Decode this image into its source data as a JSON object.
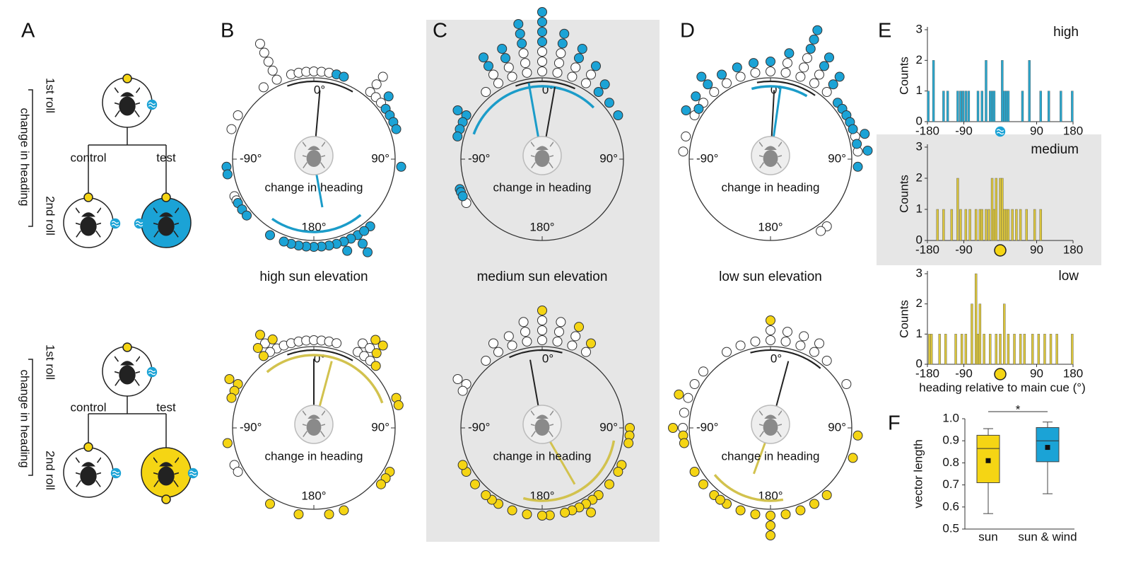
{
  "labels": [
    "A",
    "B",
    "C",
    "D",
    "E",
    "F"
  ],
  "panel_a": {
    "first_roll": "1st roll",
    "second_roll": "2nd roll",
    "change": "change in heading",
    "control": "control",
    "test": "test"
  },
  "circles": {
    "columns": [
      "high sun elevation",
      "medium sun elevation",
      "low sun elevation"
    ],
    "axis_labels": {
      "top": "0°",
      "right": "90°",
      "bottom": "180°",
      "left": "-90°"
    },
    "center_label": "change in heading",
    "plots": [
      {
        "color": "#1ba3d6",
        "line_color": "#1b9cc9",
        "white": [
          -35,
          -25,
          -25,
          -25,
          -25,
          -25,
          -15,
          -10,
          -5,
          0,
          5,
          10,
          40,
          40,
          40,
          45,
          50,
          -60,
          -70,
          -115,
          -118
        ],
        "colored": [
          15,
          20,
          50,
          55,
          60,
          65,
          70,
          95,
          -95,
          -100,
          -120,
          -125,
          -130,
          150,
          150,
          150,
          155,
          160,
          160,
          165,
          170,
          175,
          180,
          -175,
          -170,
          -165,
          -160,
          -150,
          140,
          145
        ],
        "vectors": [
          {
            "angle": 5,
            "length": 0.85
          },
          {
            "angle": 170,
            "length": 0.6
          }
        ],
        "arcs": [
          {
            "start": -20,
            "end": 30
          },
          {
            "start": 140,
            "end": 215
          }
        ]
      },
      {
        "color": "#1ba3d6",
        "line_color": "#1b9cc9",
        "white": [
          -40,
          -30,
          -30,
          -20,
          -20,
          -10,
          -10,
          -10,
          0,
          0,
          0,
          10,
          10,
          10,
          20,
          20,
          30,
          30,
          -120
        ],
        "colored": [
          -30,
          -30,
          -20,
          -20,
          -10,
          -10,
          -10,
          0,
          0,
          0,
          0,
          10,
          10,
          20,
          20,
          30,
          40,
          40,
          50,
          60,
          -60,
          -60,
          -65,
          -70,
          -75,
          -110,
          -112,
          -115
        ],
        "vectors": [
          {
            "angle": 10,
            "length": 0.9
          },
          {
            "angle": -10,
            "length": 0.95
          }
        ],
        "arcs": [
          {
            "start": -20,
            "end": 25
          },
          {
            "start": -70,
            "end": 45
          }
        ]
      },
      {
        "color": "#1ba3d6",
        "line_color": "#1b9cc9",
        "white": [
          -60,
          -50,
          -40,
          -30,
          -20,
          -10,
          0,
          10,
          10,
          20,
          20,
          20,
          30,
          30,
          40,
          75,
          85,
          -75,
          -85,
          140,
          145
        ],
        "colored": [
          -60,
          -55,
          -50,
          -40,
          -40,
          -30,
          -20,
          -10,
          0,
          10,
          20,
          20,
          20,
          30,
          30,
          40,
          40,
          50,
          55,
          60,
          65,
          70,
          75,
          80,
          85,
          95
        ],
        "vectors": [
          {
            "angle": 3,
            "length": 0.85
          },
          {
            "angle": 8,
            "length": 0.9
          }
        ],
        "arcs": [
          {
            "start": -10,
            "end": 35
          },
          {
            "start": -15,
            "end": 30
          }
        ]
      },
      {
        "color": "#f5d514",
        "line_color": "#d2c24e",
        "white": [
          -25,
          -20,
          -15,
          -10,
          -5,
          0,
          5,
          10,
          15,
          30,
          30,
          35,
          35,
          40,
          -30,
          -30,
          -115,
          -120
        ],
        "colored": [
          -25,
          -30,
          -35,
          -35,
          35,
          40,
          40,
          45,
          -60,
          -60,
          -65,
          -70,
          -100,
          70,
          75,
          120,
          125,
          130,
          160,
          170,
          -150,
          -170
        ],
        "vectors": [
          {
            "angle": 0,
            "length": 0.85
          },
          {
            "angle": 15,
            "length": 0.85
          }
        ],
        "arcs": [
          {
            "start": -20,
            "end": 30
          },
          {
            "start": -40,
            "end": 70
          }
        ]
      },
      {
        "color": "#f5d514",
        "line_color": "#d2c24e",
        "white": [
          -40,
          -30,
          -30,
          -20,
          -20,
          -10,
          -10,
          -10,
          0,
          0,
          0,
          10,
          10,
          10,
          20,
          20,
          30,
          -60,
          -60,
          -65
        ],
        "colored": [
          0,
          20,
          30,
          90,
          95,
          100,
          115,
          120,
          130,
          140,
          145,
          150,
          150,
          155,
          160,
          165,
          175,
          180,
          -170,
          -160,
          -150,
          -145,
          -140,
          -130,
          -120,
          -115
        ],
        "vectors": [
          {
            "angle": -10,
            "length": 0.85
          },
          {
            "angle": 150,
            "length": 0.8
          }
        ],
        "arcs": [
          {
            "start": -25,
            "end": 15
          },
          {
            "start": 100,
            "end": 195
          }
        ]
      },
      {
        "color": "#f5d514",
        "line_color": "#d2c24e",
        "white": [
          -30,
          -20,
          -10,
          0,
          0,
          10,
          10,
          20,
          20,
          30,
          30,
          40,
          -50,
          -60,
          -70,
          -80,
          -90,
          60
        ],
        "colored": [
          0,
          -70,
          -90,
          -95,
          -100,
          -120,
          -130,
          -140,
          -150,
          -160,
          -170,
          180,
          180,
          180,
          170,
          160,
          150,
          140,
          -145,
          110,
          95
        ],
        "vectors": [
          {
            "angle": 15,
            "length": 0.85
          },
          {
            "angle": -160,
            "length": 0.6
          }
        ],
        "arcs": [
          {
            "start": -15,
            "end": 40
          },
          {
            "start": 170,
            "end": 230
          }
        ]
      }
    ]
  },
  "chart_data": [
    {
      "type": "bar",
      "title": "high",
      "ylabel": "Counts",
      "color": "#2aa6cc",
      "x": [
        -178,
        -165,
        -140,
        -130,
        -105,
        -98,
        -92,
        -85,
        -78,
        -55,
        -45,
        -35,
        -25,
        -20,
        -15,
        5,
        10,
        15,
        20,
        55,
        72,
        100,
        120,
        150,
        178
      ],
      "values": [
        1,
        2,
        1,
        1,
        1,
        1,
        1,
        1,
        1,
        1,
        1,
        2,
        1,
        1,
        1,
        2,
        1,
        1,
        1,
        1,
        2,
        1,
        1,
        1,
        1
      ],
      "xlim": [
        -180,
        180
      ],
      "xticks": [
        -180,
        -90,
        90,
        180
      ],
      "ylim": [
        0,
        3
      ],
      "yticks": [
        0,
        1,
        2,
        3
      ]
    },
    {
      "type": "bar",
      "title": "medium",
      "ylabel": "Counts",
      "color": "#d9c43c",
      "x": [
        -155,
        -140,
        -120,
        -105,
        -98,
        -85,
        -75,
        -60,
        -50,
        -45,
        -35,
        -28,
        -20,
        -15,
        -10,
        0,
        5,
        10,
        15,
        20,
        30,
        40,
        50,
        65,
        85,
        100
      ],
      "values": [
        1,
        1,
        1,
        2,
        1,
        1,
        1,
        1,
        1,
        1,
        1,
        1,
        2,
        1,
        2,
        2,
        2,
        1,
        1,
        1,
        1,
        1,
        1,
        1,
        1,
        1
      ],
      "xlim": [
        -180,
        180
      ],
      "xticks": [
        -180,
        -90,
        90,
        180
      ],
      "ylim": [
        0,
        3
      ],
      "yticks": [
        0,
        1,
        2,
        3
      ]
    },
    {
      "type": "bar",
      "title": "low",
      "ylabel": "Counts",
      "xlabel": "heading relative to main cue (°)",
      "color": "#d9c43c",
      "x": [
        -175,
        -170,
        -150,
        -135,
        -110,
        -95,
        -85,
        -70,
        -60,
        -55,
        -50,
        -40,
        -25,
        -10,
        0,
        10,
        20,
        35,
        50,
        60,
        80,
        95,
        110,
        125,
        140,
        178
      ],
      "values": [
        1,
        1,
        1,
        1,
        1,
        1,
        1,
        2,
        3,
        1,
        2,
        1,
        1,
        1,
        1,
        2,
        1,
        1,
        1,
        1,
        1,
        1,
        1,
        1,
        1,
        1
      ],
      "xlim": [
        -180,
        180
      ],
      "xticks": [
        -180,
        -90,
        90,
        180
      ],
      "ylim": [
        0,
        3
      ],
      "yticks": [
        0,
        1,
        2,
        3
      ]
    },
    {
      "type": "box",
      "ylabel": "vector length",
      "categories": [
        "sun",
        "sun & wind"
      ],
      "boxes": [
        {
          "min": 0.57,
          "q1": 0.71,
          "median": 0.865,
          "q3": 0.925,
          "max": 0.955,
          "mean": 0.81,
          "color": "#f5d514"
        },
        {
          "min": 0.66,
          "q1": 0.805,
          "median": 0.9,
          "q3": 0.96,
          "max": 0.985,
          "mean": 0.87,
          "color": "#1ba3d6"
        }
      ],
      "annotation": "*",
      "ylim": [
        0.5,
        1.0
      ],
      "yticks": [
        0.5,
        0.6,
        0.7,
        0.8,
        0.9,
        {
          "value": 1.0,
          "label": "1.0"
        }
      ]
    }
  ]
}
